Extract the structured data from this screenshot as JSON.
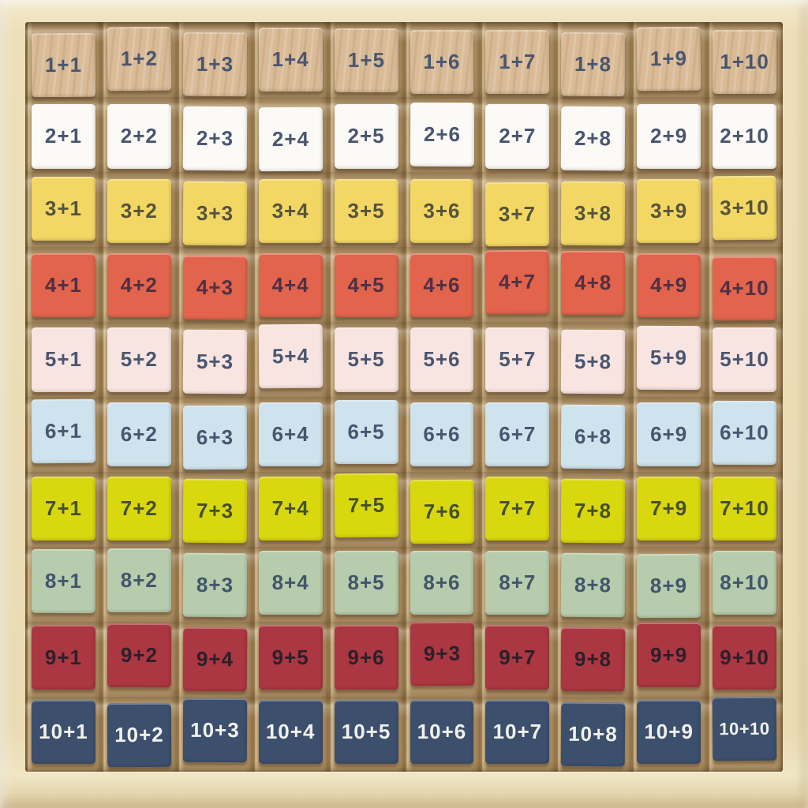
{
  "board": {
    "description": "Wooden addition table with sliding number tiles 1+1 through 10+10",
    "frame_color": "#ecdfba",
    "channel_color": "#b4976b",
    "rows": [
      {
        "name": "row-1",
        "color": "#d9bb97",
        "text_color": "#4a5670",
        "grain": true,
        "cells": [
          "1+1",
          "1+2",
          "1+3",
          "1+4",
          "1+5",
          "1+6",
          "1+7",
          "1+8",
          "1+9",
          "1+10"
        ]
      },
      {
        "name": "row-2",
        "color": "#fbfaf6",
        "text_color": "#4a5670",
        "grain": false,
        "cells": [
          "2+1",
          "2+2",
          "2+3",
          "2+4",
          "2+5",
          "2+6",
          "2+7",
          "2+8",
          "2+9",
          "2+10"
        ]
      },
      {
        "name": "row-3",
        "color": "#f3d765",
        "text_color": "#55543c",
        "grain": false,
        "cells": [
          "3+1",
          "3+2",
          "3+3",
          "3+4",
          "3+5",
          "3+6",
          "3+7",
          "3+8",
          "3+9",
          "3+10"
        ]
      },
      {
        "name": "row-4",
        "color": "#e2644c",
        "text_color": "#4f3044",
        "grain": false,
        "cells": [
          "4+1",
          "4+2",
          "4+3",
          "4+4",
          "4+5",
          "4+6",
          "4+7",
          "4+8",
          "4+9",
          "4+10"
        ]
      },
      {
        "name": "row-5",
        "color": "#f8e4e1",
        "text_color": "#4a5670",
        "grain": false,
        "cells": [
          "5+1",
          "5+2",
          "5+3",
          "5+4",
          "5+5",
          "5+6",
          "5+7",
          "5+8",
          "5+9",
          "5+10"
        ]
      },
      {
        "name": "row-6",
        "color": "#cfe3ee",
        "text_color": "#4a5670",
        "grain": false,
        "cells": [
          "6+1",
          "6+2",
          "6+3",
          "6+4",
          "6+5",
          "6+6",
          "6+7",
          "6+8",
          "6+9",
          "6+10"
        ]
      },
      {
        "name": "row-7",
        "color": "#d9d70e",
        "text_color": "#45502a",
        "grain": false,
        "cells": [
          "7+1",
          "7+2",
          "7+3",
          "7+4",
          "7+5",
          "7+6",
          "7+7",
          "7+8",
          "7+9",
          "7+10"
        ]
      },
      {
        "name": "row-8",
        "color": "#b7cbad",
        "text_color": "#41566a",
        "grain": false,
        "cells": [
          "8+1",
          "8+2",
          "8+3",
          "8+4",
          "8+5",
          "8+6",
          "8+7",
          "8+8",
          "8+9",
          "8+10"
        ]
      },
      {
        "name": "row-9",
        "color": "#aa3742",
        "text_color": "#2c2029",
        "grain": false,
        "cells": [
          "9+1",
          "9+2",
          "9+4",
          "9+5",
          "9+6",
          "9+3",
          "9+7",
          "9+8",
          "9+9",
          "9+10"
        ]
      },
      {
        "name": "row-10",
        "color": "#3c506e",
        "text_color": "#f0f1ec",
        "grain": false,
        "cells": [
          "10+1",
          "10+2",
          "10+3",
          "10+4",
          "10+5",
          "10+6",
          "10+7",
          "10+8",
          "10+9",
          "10+10"
        ]
      }
    ]
  }
}
